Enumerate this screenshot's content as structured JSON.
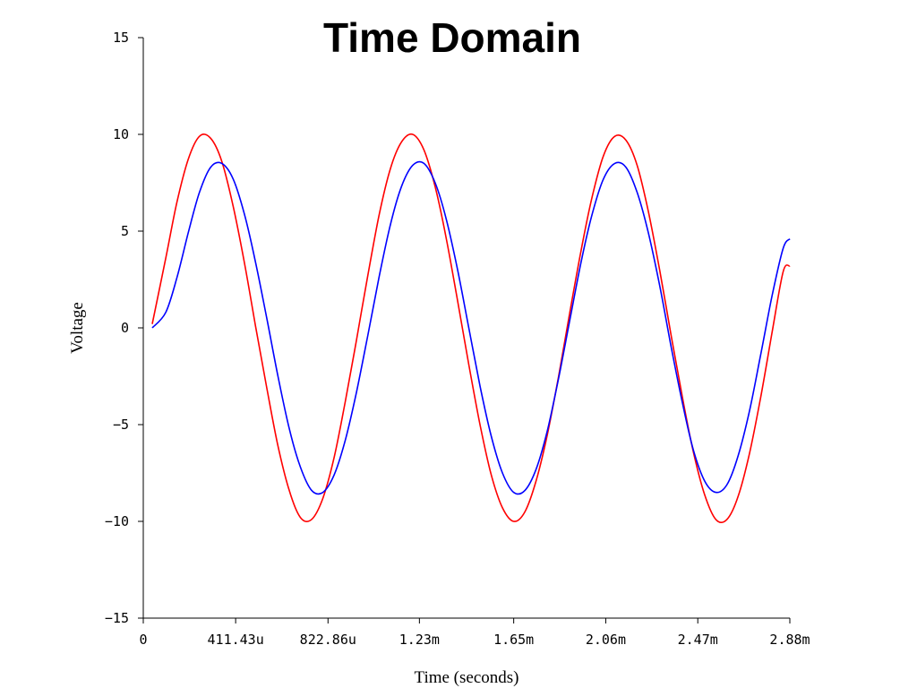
{
  "chart_data": {
    "type": "line",
    "title": "Time Domain",
    "xlabel": "Time (seconds)",
    "ylabel": "Voltage",
    "xlim": [
      0,
      2.88
    ],
    "x_unit": "ms",
    "ylim": [
      -15,
      15
    ],
    "grid": false,
    "legend": "none",
    "x_tick_values": [
      0,
      0.41143,
      0.82286,
      1.23,
      1.65,
      2.06,
      2.47,
      2.88
    ],
    "x_tick_labels": [
      "0",
      "411.43u",
      "822.86u",
      "1.23m",
      "1.65m",
      "2.06m",
      "2.47m",
      "2.88m"
    ],
    "y_ticks": [
      15,
      10,
      5,
      0,
      -5,
      -10,
      -15
    ],
    "y_tick_labels": [
      "15",
      "10",
      "5",
      "0",
      "−5",
      "−10",
      "−15"
    ],
    "series": [
      {
        "color": "#ff0000",
        "x": [
          0.04,
          0.1,
          0.15,
          0.2,
          0.25,
          0.3,
          0.35,
          0.4,
          0.45,
          0.5,
          0.55,
          0.6,
          0.65,
          0.7,
          0.75,
          0.8,
          0.85,
          0.9,
          0.95,
          1.0,
          1.05,
          1.1,
          1.15,
          1.2,
          1.25,
          1.3,
          1.35,
          1.4,
          1.45,
          1.5,
          1.55,
          1.6,
          1.65,
          1.7,
          1.75,
          1.8,
          1.85,
          1.9,
          1.95,
          2.0,
          2.05,
          2.1,
          2.15,
          2.2,
          2.25,
          2.3,
          2.35,
          2.4,
          2.45,
          2.5,
          2.55,
          2.6,
          2.65,
          2.7,
          2.75,
          2.8,
          2.85,
          2.88
        ],
        "y": [
          0.2,
          3.6,
          6.5,
          8.7,
          9.9,
          9.8,
          8.6,
          6.3,
          3.4,
          0.1,
          -3.1,
          -6.1,
          -8.4,
          -9.8,
          -9.9,
          -8.8,
          -6.7,
          -3.8,
          -0.6,
          2.7,
          5.8,
          8.2,
          9.6,
          10.0,
          9.2,
          7.3,
          4.6,
          1.4,
          -1.9,
          -5.0,
          -7.6,
          -9.3,
          -10.0,
          -9.5,
          -7.9,
          -5.5,
          -2.5,
          0.8,
          4.0,
          6.8,
          8.9,
          9.9,
          9.7,
          8.4,
          6.0,
          3.0,
          -0.3,
          -3.5,
          -6.4,
          -8.6,
          -9.9,
          -9.9,
          -8.7,
          -6.5,
          -3.6,
          -0.3,
          2.9,
          3.2
        ]
      },
      {
        "color": "#0000ff",
        "x": [
          0.04,
          0.1,
          0.15,
          0.2,
          0.25,
          0.3,
          0.35,
          0.4,
          0.45,
          0.5,
          0.55,
          0.6,
          0.65,
          0.7,
          0.75,
          0.8,
          0.85,
          0.9,
          0.95,
          1.0,
          1.05,
          1.1,
          1.15,
          1.2,
          1.25,
          1.3,
          1.35,
          1.4,
          1.45,
          1.5,
          1.55,
          1.6,
          1.65,
          1.7,
          1.75,
          1.8,
          1.85,
          1.9,
          1.95,
          2.0,
          2.05,
          2.1,
          2.15,
          2.2,
          2.25,
          2.3,
          2.35,
          2.4,
          2.45,
          2.5,
          2.55,
          2.6,
          2.65,
          2.7,
          2.75,
          2.8,
          2.85,
          2.88
        ],
        "y": [
          0.0,
          0.8,
          2.6,
          4.9,
          7.0,
          8.3,
          8.5,
          7.7,
          5.9,
          3.4,
          0.5,
          -2.5,
          -5.2,
          -7.2,
          -8.4,
          -8.5,
          -7.6,
          -5.8,
          -3.3,
          -0.4,
          2.6,
          5.3,
          7.3,
          8.4,
          8.5,
          7.5,
          5.6,
          3.0,
          0.0,
          -3.0,
          -5.6,
          -7.5,
          -8.5,
          -8.4,
          -7.3,
          -5.3,
          -2.6,
          0.4,
          3.4,
          5.9,
          7.7,
          8.5,
          8.3,
          7.0,
          4.9,
          2.2,
          -0.9,
          -3.8,
          -6.3,
          -7.9,
          -8.5,
          -8.1,
          -6.6,
          -4.3,
          -1.4,
          1.6,
          4.1,
          4.6
        ]
      }
    ]
  }
}
